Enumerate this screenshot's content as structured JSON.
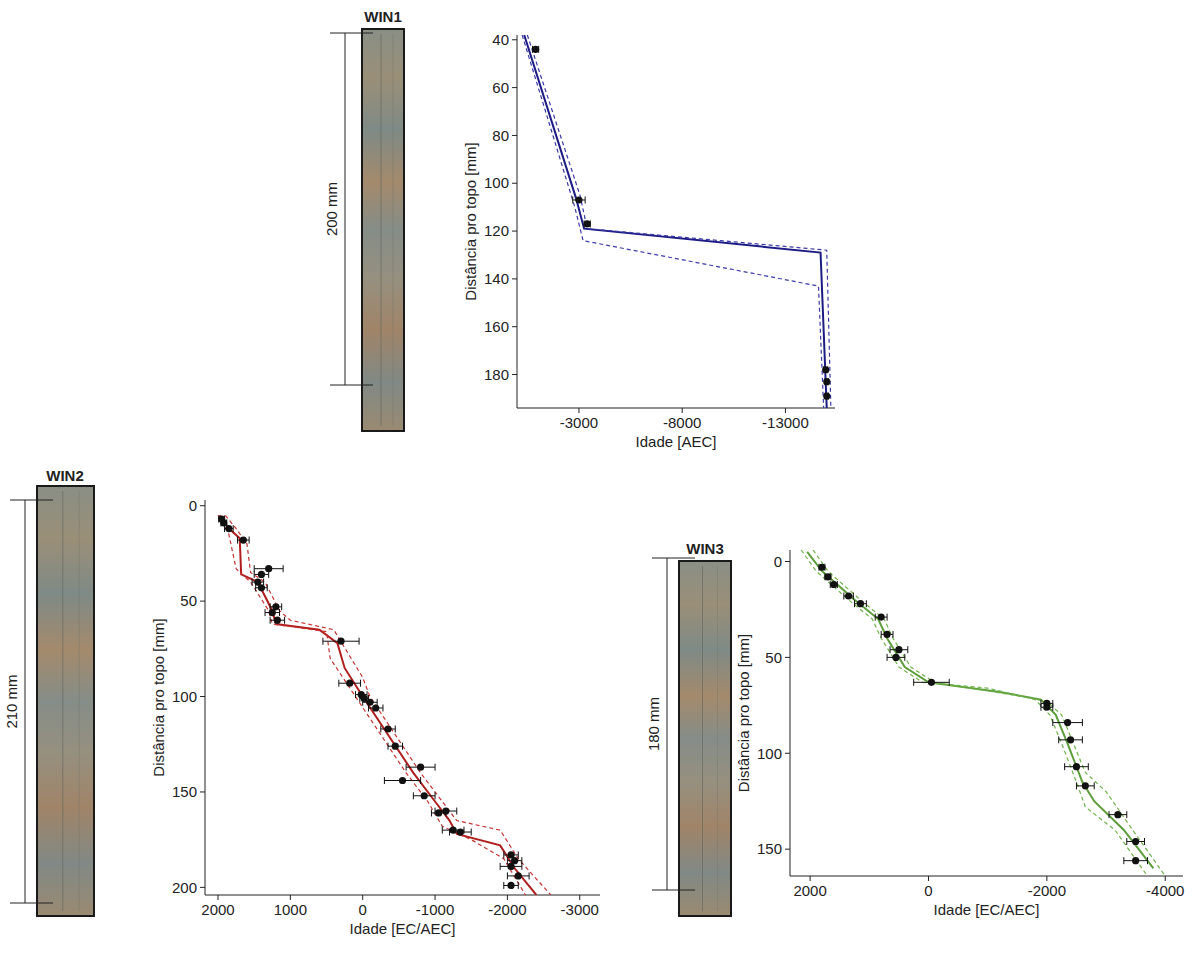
{
  "chart_data": [
    {
      "type": "line",
      "title": "WIN1",
      "annotations": [
        "200 mm"
      ],
      "x_label": "Idade [AEC]",
      "y_label": "Distância pro topo [mm]",
      "xlim": [
        0,
        -15400
      ],
      "ylim": [
        38,
        194
      ],
      "xticks": [
        -3000,
        -8000,
        -13000
      ],
      "yticks": [
        40,
        60,
        80,
        100,
        120,
        140,
        160,
        180
      ],
      "series": [
        {
          "type": "line",
          "line_style": "solid",
          "color": "#1c1c84",
          "x": [
            -350,
            -2850,
            -3250,
            -14700,
            -15000
          ],
          "values": [
            38,
            106,
            119,
            129,
            194
          ]
        },
        {
          "type": "line",
          "line_style": "dashed",
          "color": "#3a3aa8",
          "x": [
            -500,
            -3050,
            -3400,
            -15000,
            -15200
          ],
          "values": [
            38,
            105,
            119,
            128,
            194
          ]
        },
        {
          "type": "line",
          "line_style": "dashed",
          "color": "#3a3aa8",
          "x": [
            -250,
            -2800,
            -3200,
            -14600,
            -14850
          ],
          "values": [
            38,
            110,
            124,
            143,
            194
          ]
        },
        {
          "type": "scatter",
          "marker": "circle",
          "color": "#111111",
          "x": [
            -900,
            -3000,
            -3400,
            -14950,
            -15000,
            -15000
          ],
          "values": [
            44,
            107,
            117,
            178,
            183,
            189
          ],
          "x_errors": [
            150,
            300,
            150,
            100,
            80,
            80
          ]
        }
      ]
    },
    {
      "type": "line",
      "title": "WIN2",
      "annotations": [
        "210 mm"
      ],
      "x_label": "Idade [EC/AEC]",
      "y_label": "Distância pro topo [mm]",
      "xlim": [
        2180,
        -3280
      ],
      "ylim": [
        -3,
        204
      ],
      "xticks": [
        2000,
        1000,
        0,
        -1000,
        -2000,
        -3000
      ],
      "yticks": [
        0,
        50,
        100,
        150,
        200
      ],
      "series": [
        {
          "type": "line",
          "line_style": "solid",
          "color": "#b01e1e",
          "x": [
            1980,
            1850,
            1700,
            1680,
            1450,
            1250,
            1200,
            600,
            350,
            250,
            0,
            -350,
            -700,
            -1000,
            -1200,
            -1300,
            -1900,
            -2100,
            -2400
          ],
          "values": [
            5,
            12,
            17,
            36,
            40,
            55,
            62,
            65,
            72,
            85,
            100,
            120,
            140,
            155,
            165,
            172,
            178,
            190,
            204
          ]
        },
        {
          "type": "line",
          "line_style": "dashed",
          "color": "#c83232",
          "x": [
            2000,
            1850,
            1750,
            1550,
            1300,
            1250,
            500,
            450,
            100,
            -250,
            -600,
            -900,
            -1100,
            -1500,
            -1950,
            -2250
          ],
          "values": [
            5,
            15,
            33,
            40,
            55,
            62,
            66,
            80,
            100,
            120,
            140,
            155,
            168,
            175,
            185,
            204
          ]
        },
        {
          "type": "line",
          "line_style": "dashed",
          "color": "#c83232",
          "x": [
            1900,
            1750,
            1600,
            1550,
            1350,
            1150,
            1000,
            400,
            0,
            -100,
            -450,
            -800,
            -1100,
            -1300,
            -1900,
            -2150,
            -2600
          ],
          "values": [
            5,
            12,
            20,
            35,
            40,
            55,
            60,
            65,
            90,
            100,
            120,
            140,
            155,
            165,
            170,
            185,
            204
          ]
        },
        {
          "type": "scatter",
          "marker": "circle",
          "color": "#111111",
          "x": [
            1950,
            1920,
            1850,
            1650,
            1300,
            1400,
            1450,
            1400,
            1200,
            1250,
            1180,
            300,
            180,
            20,
            -20,
            -100,
            -180,
            -350,
            -450,
            -800,
            -550,
            -850,
            -1150,
            -1050,
            -1250,
            -1350,
            -2050,
            -2100,
            -2050,
            -2150,
            -2050
          ],
          "values": [
            7,
            9,
            12,
            18,
            33,
            36,
            40,
            43,
            53,
            56,
            60,
            71,
            93,
            99,
            101,
            103,
            106,
            117,
            126,
            137,
            144,
            152,
            160,
            161,
            170,
            171,
            183,
            186,
            189,
            194,
            199
          ],
          "x_errors": [
            40,
            40,
            60,
            80,
            200,
            100,
            80,
            80,
            80,
            100,
            100,
            250,
            150,
            80,
            60,
            100,
            100,
            100,
            100,
            200,
            250,
            150,
            150,
            100,
            150,
            150,
            100,
            100,
            150,
            150,
            100
          ]
        }
      ]
    },
    {
      "type": "line",
      "title": "WIN3",
      "annotations": [
        "180 mm"
      ],
      "x_label": "Idade [EC/AEC]",
      "y_label": "Distância pro topo [mm]",
      "xlim": [
        2340,
        -4300
      ],
      "ylim": [
        -6,
        164
      ],
      "xticks": [
        2000,
        0,
        -2000,
        -4000
      ],
      "yticks": [
        0,
        50,
        100,
        150
      ],
      "series": [
        {
          "type": "line",
          "line_style": "solid",
          "color": "#5c9e3a",
          "x": [
            2050,
            1800,
            1250,
            850,
            700,
            400,
            0,
            -1200,
            -1900,
            -2150,
            -2350,
            -2600,
            -2800,
            -3300,
            -3700,
            -3800
          ],
          "values": [
            -5,
            5,
            20,
            30,
            40,
            55,
            63,
            68,
            72,
            80,
            95,
            115,
            125,
            140,
            156,
            160
          ]
        },
        {
          "type": "line",
          "line_style": "dashed",
          "color": "#6fb24a",
          "x": [
            2150,
            1900,
            1350,
            950,
            800,
            500,
            100,
            -1000,
            -1800,
            -2050,
            -2250,
            -2500,
            -2650,
            -3150,
            -3700
          ],
          "values": [
            -6,
            5,
            20,
            30,
            40,
            55,
            63,
            66,
            72,
            80,
            95,
            115,
            128,
            140,
            164
          ]
        },
        {
          "type": "line",
          "line_style": "dashed",
          "color": "#6fb24a",
          "x": [
            1950,
            1700,
            1150,
            750,
            600,
            300,
            -100,
            -1500,
            -2000,
            -2250,
            -2450,
            -2650,
            -3000,
            -3450,
            -4000
          ],
          "values": [
            -6,
            5,
            20,
            30,
            40,
            55,
            63,
            70,
            73,
            80,
            95,
            110,
            120,
            140,
            164
          ]
        },
        {
          "type": "scatter",
          "marker": "circle",
          "color": "#111111",
          "x": [
            1800,
            1700,
            1600,
            1350,
            1150,
            800,
            700,
            500,
            550,
            -50,
            -2000,
            -2000,
            -2350,
            -2400,
            -2500,
            -2650,
            -3200,
            -3500,
            -3500
          ],
          "values": [
            3,
            8,
            12,
            18,
            22,
            29,
            38,
            46,
            50,
            63,
            74,
            76,
            84,
            93,
            107,
            117,
            132,
            146,
            156
          ],
          "x_errors": [
            50,
            50,
            60,
            80,
            100,
            100,
            100,
            150,
            150,
            300,
            100,
            100,
            250,
            200,
            200,
            150,
            150,
            150,
            200
          ]
        }
      ]
    }
  ]
}
